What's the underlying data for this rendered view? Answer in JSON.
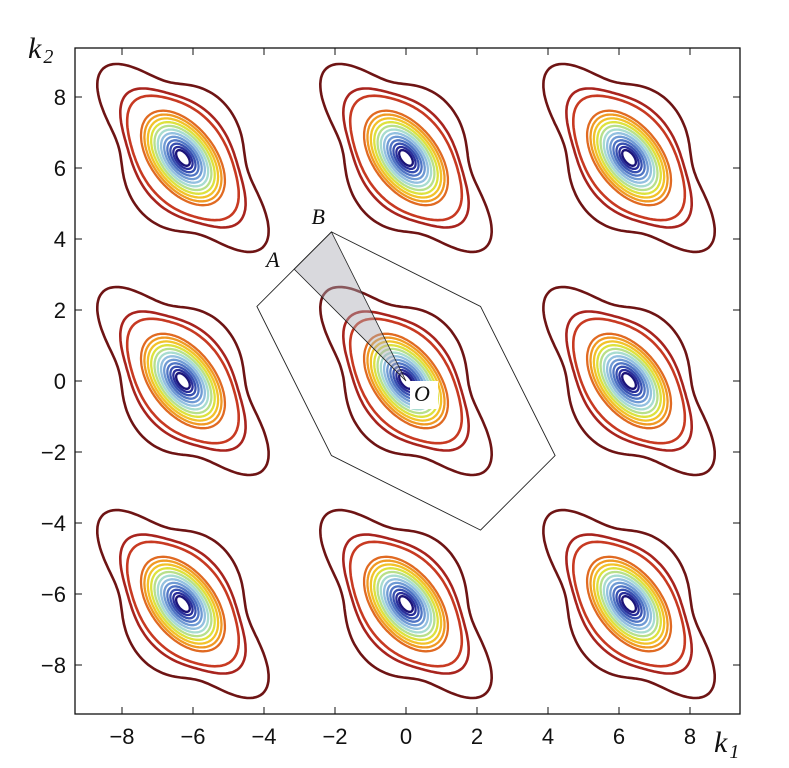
{
  "chart_data": {
    "type": "contour",
    "title": "",
    "xlabel": "k",
    "xlabel_sub": "1",
    "ylabel": "k",
    "ylabel_sub": "2",
    "xlim": [
      -9.35,
      9.4
    ],
    "ylim": [
      -9.4,
      9.4
    ],
    "xticks": [
      -8,
      -6,
      -4,
      -2,
      0,
      2,
      4,
      6,
      8
    ],
    "yticks": [
      -8,
      -6,
      -4,
      -2,
      0,
      2,
      4,
      6,
      8
    ],
    "xtick_labels": [
      "−8",
      "−6",
      "−4",
      "−2",
      "0",
      "2",
      "4",
      "6",
      "8"
    ],
    "ytick_labels": [
      "−8",
      "−6",
      "−4",
      "−2",
      "0",
      "2",
      "4",
      "6",
      "8"
    ],
    "grid": false,
    "contour_centers": [
      [
        -6.283,
        6.283
      ],
      [
        0,
        6.283
      ],
      [
        6.283,
        6.283
      ],
      [
        -6.283,
        0
      ],
      [
        0,
        0
      ],
      [
        6.283,
        0
      ],
      [
        -6.283,
        -6.283
      ],
      [
        0,
        -6.283
      ],
      [
        6.283,
        -6.283
      ]
    ],
    "contour_level_colors": [
      "#1c1478",
      "#2a2f9a",
      "#3850b0",
      "#4f74c4",
      "#6f9ad4",
      "#93c0e0",
      "#a8dcd0",
      "#b8e08a",
      "#dde23e",
      "#f2c22a",
      "#f09a24",
      "#e06a22",
      "#c83a22",
      "#a8241e",
      "#6e1414"
    ],
    "brillouin_zone": {
      "vertices": [
        [
          2.1,
          2.1
        ],
        [
          4.2,
          -2.1
        ],
        [
          2.1,
          -4.2
        ],
        [
          -2.1,
          -2.1
        ],
        [
          -4.2,
          2.1
        ],
        [
          -2.1,
          4.2
        ]
      ]
    },
    "points": [
      {
        "label": "A",
        "x": -3.15,
        "y": 3.15
      },
      {
        "label": "B",
        "x": -2.1,
        "y": 4.2
      },
      {
        "label": "O",
        "x": 0,
        "y": 0
      }
    ],
    "shaded_wedge": [
      "O",
      "A",
      "B"
    ]
  }
}
